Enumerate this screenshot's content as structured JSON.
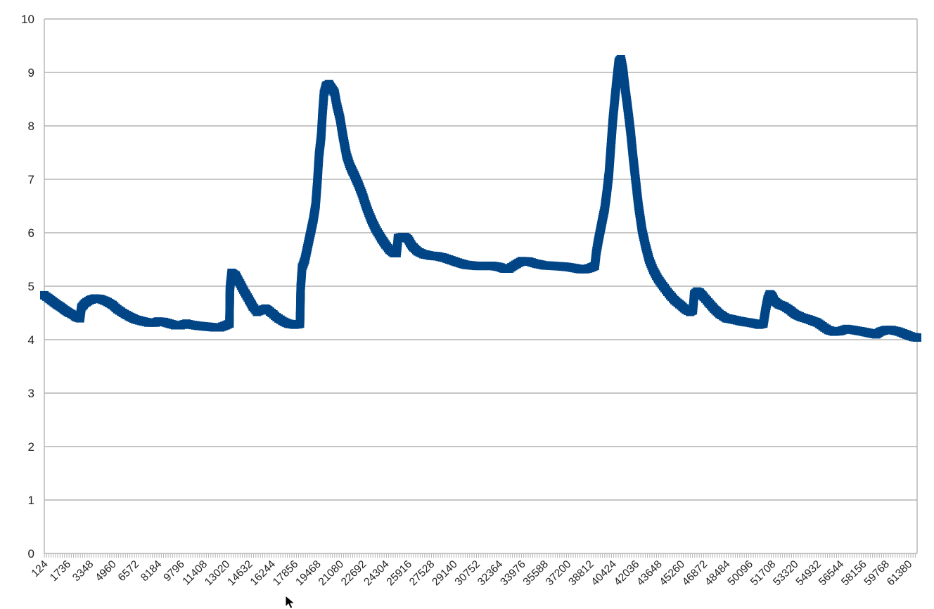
{
  "chart_data": {
    "type": "line",
    "title": "",
    "xlabel": "",
    "ylabel": "",
    "ylim": [
      0,
      10
    ],
    "yticks": [
      "0",
      "1",
      "2",
      "3",
      "4",
      "5",
      "6",
      "7",
      "8",
      "9",
      "10"
    ],
    "xlim": [
      124,
      62000
    ],
    "xticks": [
      "124",
      "1736",
      "3348",
      "4960",
      "6572",
      "8184",
      "9796",
      "11408",
      "13020",
      "14632",
      "16244",
      "17856",
      "19468",
      "21080",
      "22692",
      "24304",
      "25916",
      "27528",
      "29140",
      "30752",
      "32364",
      "33976",
      "35588",
      "37200",
      "38812",
      "40424",
      "42036",
      "43648",
      "45260",
      "46872",
      "48484",
      "50096",
      "51708",
      "53320",
      "54932",
      "56544",
      "58156",
      "59768",
      "61380"
    ],
    "grid": "horizontal",
    "legend": "none",
    "marker": "square",
    "series": [
      {
        "color": "#004586",
        "points": [
          [
            124,
            4.83
          ],
          [
            400,
            4.78
          ],
          [
            700,
            4.72
          ],
          [
            1000,
            4.66
          ],
          [
            1300,
            4.61
          ],
          [
            1600,
            4.55
          ],
          [
            1900,
            4.5
          ],
          [
            2200,
            4.46
          ],
          [
            2400,
            4.42
          ],
          [
            2650,
            4.4
          ],
          [
            2750,
            4.6
          ],
          [
            3000,
            4.68
          ],
          [
            3348,
            4.74
          ],
          [
            3700,
            4.77
          ],
          [
            4100,
            4.76
          ],
          [
            4500,
            4.72
          ],
          [
            4960,
            4.65
          ],
          [
            5300,
            4.57
          ],
          [
            5700,
            4.5
          ],
          [
            6100,
            4.44
          ],
          [
            6572,
            4.38
          ],
          [
            7000,
            4.35
          ],
          [
            7500,
            4.32
          ],
          [
            8000,
            4.32
          ],
          [
            8184,
            4.34
          ],
          [
            8600,
            4.33
          ],
          [
            9000,
            4.3
          ],
          [
            9400,
            4.27
          ],
          [
            9796,
            4.27
          ],
          [
            10200,
            4.3
          ],
          [
            10500,
            4.28
          ],
          [
            11000,
            4.26
          ],
          [
            11408,
            4.25
          ],
          [
            11800,
            4.24
          ],
          [
            12200,
            4.23
          ],
          [
            12600,
            4.23
          ],
          [
            13000,
            4.27
          ],
          [
            13250,
            4.3
          ],
          [
            13280,
            4.95
          ],
          [
            13400,
            5.25
          ],
          [
            13700,
            5.2
          ],
          [
            14000,
            5.05
          ],
          [
            14300,
            4.9
          ],
          [
            14632,
            4.75
          ],
          [
            14900,
            4.62
          ],
          [
            15200,
            4.52
          ],
          [
            15500,
            4.55
          ],
          [
            15800,
            4.58
          ],
          [
            16000,
            4.55
          ],
          [
            16244,
            4.5
          ],
          [
            16600,
            4.42
          ],
          [
            17000,
            4.35
          ],
          [
            17400,
            4.3
          ],
          [
            17856,
            4.28
          ],
          [
            18150,
            4.29
          ],
          [
            18250,
            4.3
          ],
          [
            18300,
            4.98
          ],
          [
            18400,
            5.35
          ],
          [
            18600,
            5.5
          ],
          [
            18800,
            5.75
          ],
          [
            19000,
            6.0
          ],
          [
            19200,
            6.25
          ],
          [
            19350,
            6.5
          ],
          [
            19468,
            6.9
          ],
          [
            19600,
            7.45
          ],
          [
            19750,
            7.8
          ],
          [
            19850,
            8.25
          ],
          [
            19950,
            8.6
          ],
          [
            20100,
            8.75
          ],
          [
            20300,
            8.78
          ],
          [
            20500,
            8.7
          ],
          [
            20700,
            8.62
          ],
          [
            20850,
            8.4
          ],
          [
            21080,
            8.15
          ],
          [
            21300,
            7.8
          ],
          [
            21550,
            7.45
          ],
          [
            21800,
            7.25
          ],
          [
            22100,
            7.08
          ],
          [
            22400,
            6.9
          ],
          [
            22692,
            6.7
          ],
          [
            23000,
            6.45
          ],
          [
            23300,
            6.25
          ],
          [
            23600,
            6.08
          ],
          [
            24000,
            5.9
          ],
          [
            24304,
            5.78
          ],
          [
            24600,
            5.68
          ],
          [
            24900,
            5.62
          ],
          [
            25100,
            5.62
          ],
          [
            25200,
            5.9
          ],
          [
            25500,
            5.92
          ],
          [
            25700,
            5.92
          ],
          [
            25916,
            5.88
          ],
          [
            26200,
            5.75
          ],
          [
            26600,
            5.65
          ],
          [
            27000,
            5.6
          ],
          [
            27528,
            5.57
          ],
          [
            28000,
            5.56
          ],
          [
            28500,
            5.53
          ],
          [
            29140,
            5.47
          ],
          [
            29600,
            5.43
          ],
          [
            30000,
            5.4
          ],
          [
            30752,
            5.38
          ],
          [
            31300,
            5.38
          ],
          [
            31900,
            5.38
          ],
          [
            32364,
            5.36
          ],
          [
            32700,
            5.33
          ],
          [
            33100,
            5.33
          ],
          [
            33500,
            5.4
          ],
          [
            33976,
            5.47
          ],
          [
            34500,
            5.46
          ],
          [
            35000,
            5.42
          ],
          [
            35588,
            5.39
          ],
          [
            36200,
            5.38
          ],
          [
            36800,
            5.37
          ],
          [
            37200,
            5.36
          ],
          [
            37700,
            5.34
          ],
          [
            38100,
            5.32
          ],
          [
            38500,
            5.32
          ],
          [
            38812,
            5.34
          ],
          [
            39150,
            5.38
          ],
          [
            39250,
            5.62
          ],
          [
            39400,
            5.85
          ],
          [
            39550,
            6.05
          ],
          [
            39700,
            6.25
          ],
          [
            39850,
            6.45
          ],
          [
            40000,
            6.75
          ],
          [
            40150,
            7.1
          ],
          [
            40300,
            7.65
          ],
          [
            40424,
            8.1
          ],
          [
            40550,
            8.45
          ],
          [
            40700,
            8.85
          ],
          [
            40850,
            9.2
          ],
          [
            41000,
            9.25
          ],
          [
            41150,
            9.05
          ],
          [
            41300,
            8.7
          ],
          [
            41500,
            8.3
          ],
          [
            41700,
            7.85
          ],
          [
            41850,
            7.45
          ],
          [
            42036,
            7.0
          ],
          [
            42250,
            6.5
          ],
          [
            42500,
            6.05
          ],
          [
            42750,
            5.75
          ],
          [
            43000,
            5.5
          ],
          [
            43300,
            5.3
          ],
          [
            43648,
            5.13
          ],
          [
            44000,
            5.0
          ],
          [
            44400,
            4.86
          ],
          [
            44800,
            4.74
          ],
          [
            45260,
            4.64
          ],
          [
            45600,
            4.56
          ],
          [
            45900,
            4.52
          ],
          [
            46100,
            4.55
          ],
          [
            46200,
            4.85
          ],
          [
            46400,
            4.9
          ],
          [
            46600,
            4.88
          ],
          [
            46872,
            4.8
          ],
          [
            47200,
            4.7
          ],
          [
            47600,
            4.58
          ],
          [
            48000,
            4.48
          ],
          [
            48484,
            4.4
          ],
          [
            48900,
            4.38
          ],
          [
            49400,
            4.35
          ],
          [
            49800,
            4.33
          ],
          [
            50096,
            4.32
          ],
          [
            50500,
            4.3
          ],
          [
            50800,
            4.28
          ],
          [
            51100,
            4.3
          ],
          [
            51250,
            4.55
          ],
          [
            51400,
            4.75
          ],
          [
            51550,
            4.85
          ],
          [
            51708,
            4.82
          ],
          [
            51900,
            4.72
          ],
          [
            52200,
            4.66
          ],
          [
            52600,
            4.62
          ],
          [
            53000,
            4.55
          ],
          [
            53320,
            4.48
          ],
          [
            53800,
            4.42
          ],
          [
            54300,
            4.38
          ],
          [
            54700,
            4.34
          ],
          [
            54932,
            4.32
          ],
          [
            55300,
            4.25
          ],
          [
            55700,
            4.18
          ],
          [
            56100,
            4.15
          ],
          [
            56544,
            4.16
          ],
          [
            57000,
            4.2
          ],
          [
            57500,
            4.18
          ],
          [
            58156,
            4.15
          ],
          [
            58700,
            4.12
          ],
          [
            59100,
            4.1
          ],
          [
            59400,
            4.15
          ],
          [
            59768,
            4.18
          ],
          [
            60200,
            4.18
          ],
          [
            60700,
            4.15
          ],
          [
            61000,
            4.12
          ],
          [
            61380,
            4.08
          ],
          [
            61700,
            4.05
          ],
          [
            62000,
            4.04
          ]
        ]
      }
    ]
  }
}
